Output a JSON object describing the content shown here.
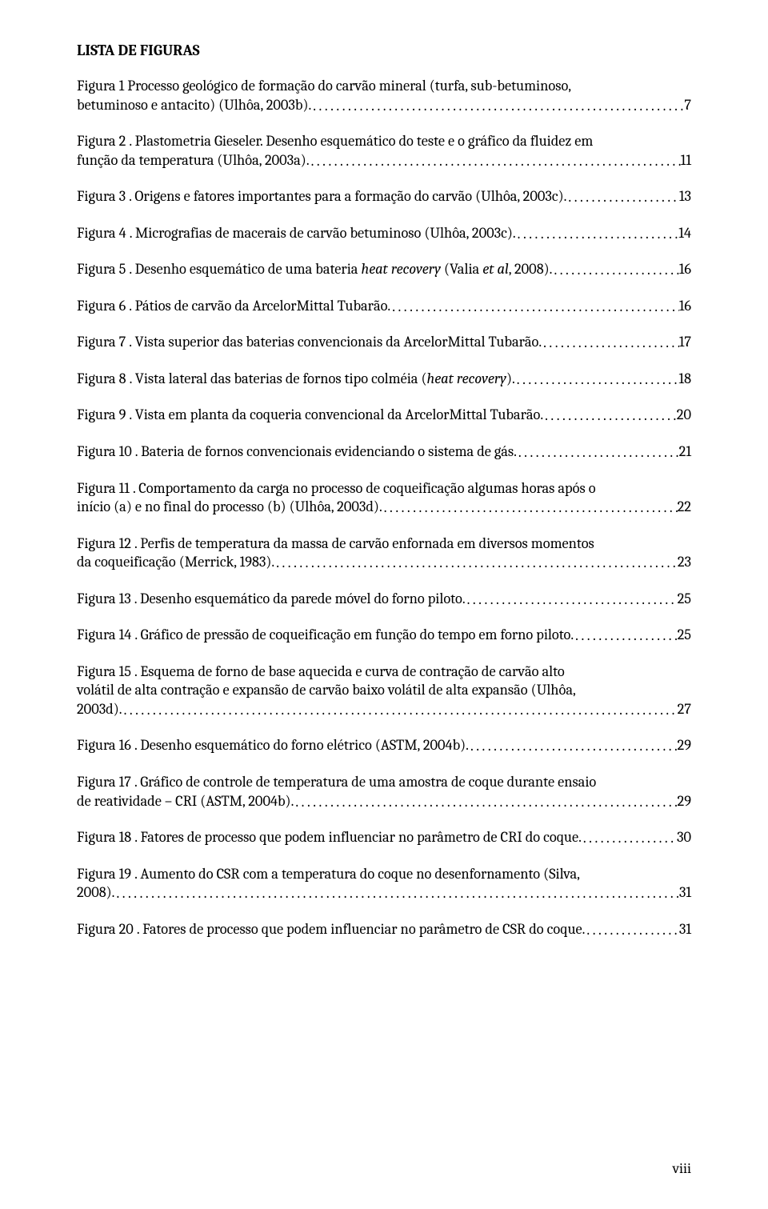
{
  "title": "LISTA DE FIGURAS",
  "roman_page": "viii",
  "leader_char": ".",
  "entries": [
    {
      "pre": "Figura 1 Processo geológico de formação do carvão mineral (turfa, sub-betuminoso,",
      "last": "betuminoso e antacito) (Ulhôa, 2003b).",
      "page": "7"
    },
    {
      "pre": "Figura 2 . Plastometria Gieseler. Desenho esquemático do teste e o gráfico da fluidez em",
      "last": "função da temperatura (Ulhôa, 2003a).",
      "page": "11"
    },
    {
      "pre": "",
      "last": "Figura 3 . Origens e fatores importantes para a formação do carvão (Ulhôa, 2003c).",
      "page": "13"
    },
    {
      "pre": "",
      "last": "Figura 4 . Micrografias de macerais de carvão betuminoso (Ulhôa, 2003c).",
      "page": "14"
    },
    {
      "pre": "",
      "last_segments": [
        {
          "t": "Figura 5 . Desenho esquemático de uma bateria "
        },
        {
          "t": "heat recovery",
          "i": true
        },
        {
          "t": " (Valia "
        },
        {
          "t": "et al",
          "i": true
        },
        {
          "t": ", 2008)."
        }
      ],
      "page": "16"
    },
    {
      "pre": "",
      "last": "Figura 6 . Pátios de carvão da ArcelorMittal Tubarão.",
      "page": "16"
    },
    {
      "pre": "",
      "last": "Figura 7 . Vista superior das baterias convencionais da ArcelorMittal Tubarão.",
      "page": "17"
    },
    {
      "pre": "",
      "last_segments": [
        {
          "t": "Figura 8 . Vista lateral das baterias de fornos tipo colméia ("
        },
        {
          "t": "heat recovery",
          "i": true
        },
        {
          "t": ")."
        }
      ],
      "page": "18"
    },
    {
      "pre": "",
      "last": "Figura 9 . Vista em planta da coqueria convencional da ArcelorMittal Tubarão.",
      "page": "20"
    },
    {
      "pre": "",
      "last": "Figura 10 . Bateria de fornos convencionais evidenciando o sistema de gás.",
      "page": "21"
    },
    {
      "pre": "Figura 11 . Comportamento da carga no processo de coqueificação algumas horas após o",
      "last": "início (a) e no final do processo (b) (Ulhôa, 2003d).",
      "page": "22"
    },
    {
      "pre": "Figura 12 . Perfis de temperatura da massa de carvão enfornada em diversos momentos",
      "last": "da coqueificação (Merrick, 1983).",
      "page": "23"
    },
    {
      "pre": "",
      "last": "Figura 13 . Desenho esquemático da parede móvel do forno piloto.",
      "page": "25"
    },
    {
      "pre": "",
      "last": "Figura 14 . Gráfico de pressão de coqueificação em função do tempo em forno piloto.",
      "page": "25"
    },
    {
      "pre": "Figura 15 . Esquema de forno de base aquecida e curva de contração de carvão alto\nvolátil de alta contração e expansão de carvão baixo volátil de alta expansão (Ulhôa,",
      "last": "2003d).",
      "page": "27"
    },
    {
      "pre": "",
      "last": "Figura 16 . Desenho esquemático do forno elétrico (ASTM, 2004b).",
      "page": "29"
    },
    {
      "pre": "Figura 17 . Gráfico de controle de temperatura de uma amostra de coque durante ensaio",
      "last": "de reatividade – CRI (ASTM, 2004b).",
      "page": "29"
    },
    {
      "pre": "",
      "last": "Figura 18 . Fatores de processo que podem influenciar no parâmetro de CRI do coque.",
      "page": "30"
    },
    {
      "pre": "Figura 19 . Aumento do CSR com a temperatura do coque no desenfornamento (Silva,",
      "last": "2008).",
      "page": "31"
    },
    {
      "pre": "",
      "last": "Figura 20 . Fatores de processo que podem influenciar no parâmetro de CSR do coque.",
      "page": "31"
    }
  ]
}
